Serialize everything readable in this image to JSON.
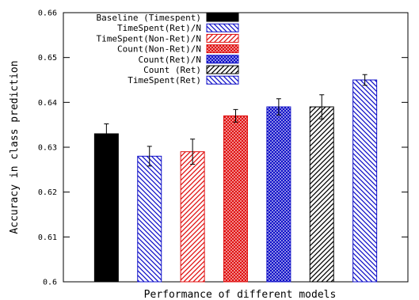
{
  "chart_data": {
    "type": "bar",
    "title": "",
    "xlabel": "Performance of different models",
    "ylabel": "Accuracy in class prediction",
    "ylim": [
      0.6,
      0.66
    ],
    "yticks": [
      "0.6",
      "0.61",
      "0.62",
      "0.63",
      "0.64",
      "0.65",
      "0.66"
    ],
    "grid": false,
    "legend_position": "top-left",
    "series": [
      {
        "name": "Baseline (Timespent)",
        "value": 0.633,
        "error": 0.0022,
        "color": "#000000",
        "pattern": "solid"
      },
      {
        "name": "TimeSpent(Ret)/N",
        "value": 0.628,
        "error": 0.0022,
        "color": "#1010c8",
        "pattern": "hatch-back"
      },
      {
        "name": "TimeSpent(Non-Ret)/N",
        "value": 0.629,
        "error": 0.0028,
        "color": "#e01010",
        "pattern": "hatch-forward"
      },
      {
        "name": "Count(Non-Ret)/N",
        "value": 0.637,
        "error": 0.0014,
        "color": "#e01010",
        "pattern": "crosshatch"
      },
      {
        "name": "Count(Ret)/N",
        "value": 0.639,
        "error": 0.0018,
        "color": "#1010c8",
        "pattern": "crosshatch"
      },
      {
        "name": "Count (Ret)",
        "value": 0.639,
        "error": 0.0027,
        "color": "#000000",
        "pattern": "hatch-forward"
      },
      {
        "name": "TimeSpent(Ret)",
        "value": 0.645,
        "error": 0.0012,
        "color": "#1010c8",
        "pattern": "hatch-back"
      }
    ]
  }
}
